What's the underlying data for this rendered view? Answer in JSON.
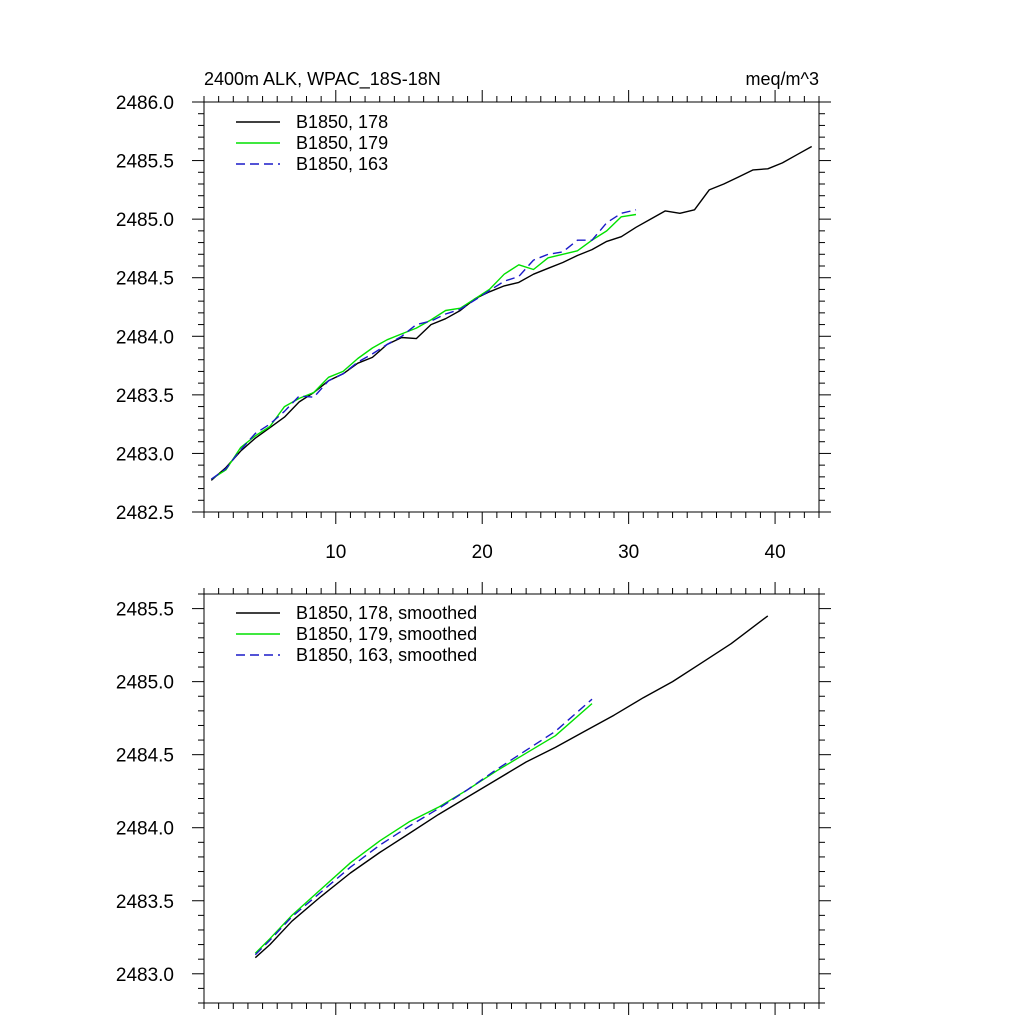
{
  "chart_data": [
    {
      "type": "line",
      "title_left": "2400m ALK, WPAC_18S-18N",
      "title_right": "meq/m^3",
      "xlim": [
        1,
        43
      ],
      "ylim": [
        2482.5,
        2486.0
      ],
      "xticks": [
        10,
        20,
        30,
        40
      ],
      "yticks": [
        2482.5,
        2483.0,
        2483.5,
        2484.0,
        2484.5,
        2485.0,
        2485.5,
        2486.0
      ],
      "ytick_labels": [
        "2482.5",
        "2483.0",
        "2483.5",
        "2484.0",
        "2484.5",
        "2485.0",
        "2485.5",
        "2486.0"
      ],
      "show_x_labels": true,
      "legend_position": "top-left",
      "series": [
        {
          "name": "B1850, 178",
          "color": "#000000",
          "dash": "solid",
          "x": [
            1.5,
            2.5,
            3.5,
            4.5,
            5.5,
            6.5,
            7.5,
            8.5,
            9.5,
            10.5,
            11.5,
            12.5,
            13.5,
            14.5,
            15.5,
            16.5,
            17.5,
            18.5,
            19.5,
            20.5,
            21.5,
            22.5,
            23.5,
            24.5,
            25.5,
            26.5,
            27.5,
            28.5,
            29.5,
            30.5,
            31.5,
            32.5,
            33.5,
            34.5,
            35.5,
            36.5,
            37.5,
            38.5,
            39.5,
            40.5,
            41.5,
            42.5
          ],
          "y": [
            2482.77,
            2482.88,
            2483.02,
            2483.13,
            2483.22,
            2483.31,
            2483.44,
            2483.52,
            2483.62,
            2483.68,
            2483.77,
            2483.82,
            2483.93,
            2483.99,
            2483.98,
            2484.1,
            2484.15,
            2484.22,
            2484.32,
            2484.38,
            2484.43,
            2484.46,
            2484.53,
            2484.58,
            2484.63,
            2484.69,
            2484.74,
            2484.81,
            2484.85,
            2484.93,
            2485.0,
            2485.07,
            2485.05,
            2485.08,
            2485.25,
            2485.3,
            2485.36,
            2485.42,
            2485.43,
            2485.48,
            2485.55,
            2485.62
          ]
        },
        {
          "name": "B1850, 179",
          "color": "#00e000",
          "dash": "solid",
          "x": [
            1.5,
            2.5,
            3.5,
            4.5,
            5.5,
            6.5,
            7.5,
            8.5,
            9.5,
            10.5,
            11.5,
            12.5,
            13.5,
            14.5,
            15.5,
            16.5,
            17.5,
            18.5,
            19.5,
            20.5,
            21.5,
            22.5,
            23.5,
            24.5,
            25.5,
            26.5,
            27.5,
            28.5,
            29.5,
            30.5
          ],
          "y": [
            2482.78,
            2482.86,
            2483.05,
            2483.15,
            2483.23,
            2483.4,
            2483.47,
            2483.52,
            2483.65,
            2483.7,
            2483.81,
            2483.9,
            2483.97,
            2484.02,
            2484.07,
            2484.14,
            2484.22,
            2484.24,
            2484.32,
            2484.4,
            2484.53,
            2484.61,
            2484.57,
            2484.67,
            2484.7,
            2484.73,
            2484.82,
            2484.9,
            2485.02,
            2485.04
          ]
        },
        {
          "name": "B1850, 163",
          "color": "#1a1ac8",
          "dash": "dashed",
          "x": [
            1.5,
            2.5,
            3.5,
            4.5,
            5.5,
            6.5,
            7.5,
            8.5,
            9.5,
            10.5,
            11.5,
            12.5,
            13.5,
            14.5,
            15.5,
            16.5,
            17.5,
            18.5,
            19.5,
            20.5,
            21.5,
            22.5,
            23.5,
            24.5,
            25.5,
            26.5,
            27.5,
            28.5,
            29.5,
            30.5
          ],
          "y": [
            2482.78,
            2482.87,
            2483.03,
            2483.17,
            2483.25,
            2483.36,
            2483.49,
            2483.48,
            2483.62,
            2483.68,
            2483.78,
            2483.85,
            2483.93,
            2484.0,
            2484.1,
            2484.13,
            2484.19,
            2484.23,
            2484.31,
            2484.39,
            2484.47,
            2484.51,
            2484.65,
            2484.7,
            2484.72,
            2484.82,
            2484.82,
            2484.97,
            2485.05,
            2485.08
          ]
        }
      ]
    },
    {
      "type": "line",
      "xlim": [
        1,
        43
      ],
      "ylim": [
        2482.8,
        2485.6
      ],
      "xticks": [
        10,
        20,
        30,
        40
      ],
      "yticks": [
        2483.0,
        2483.5,
        2484.0,
        2484.5,
        2485.0,
        2485.5
      ],
      "ytick_labels": [
        "2483.0",
        "2483.5",
        "2484.0",
        "2484.5",
        "2485.0",
        "2485.5"
      ],
      "show_x_labels": false,
      "legend_position": "top-left",
      "series": [
        {
          "name": "B1850, 178, smoothed",
          "color": "#000000",
          "dash": "solid",
          "x": [
            4.5,
            5.5,
            7,
            9,
            11,
            13,
            15,
            17,
            19,
            21,
            23,
            25,
            27,
            29,
            31,
            33,
            35,
            37,
            39.5
          ],
          "y": [
            2483.11,
            2483.2,
            2483.36,
            2483.53,
            2483.69,
            2483.83,
            2483.96,
            2484.09,
            2484.21,
            2484.33,
            2484.45,
            2484.55,
            2484.66,
            2484.77,
            2484.89,
            2485.0,
            2485.13,
            2485.26,
            2485.45
          ]
        },
        {
          "name": "B1850, 179, smoothed",
          "color": "#00e000",
          "dash": "solid",
          "x": [
            4.5,
            5.5,
            7,
            9,
            11,
            13,
            15,
            17,
            19,
            21,
            23,
            25,
            27.5
          ],
          "y": [
            2483.14,
            2483.24,
            2483.4,
            2483.58,
            2483.76,
            2483.91,
            2484.04,
            2484.14,
            2484.26,
            2484.39,
            2484.51,
            2484.63,
            2484.85
          ]
        },
        {
          "name": "B1850, 163, smoothed",
          "color": "#1a1ac8",
          "dash": "dashed",
          "x": [
            4.5,
            5.5,
            7,
            9,
            11,
            13,
            15,
            17,
            19,
            21,
            23,
            25,
            27.5
          ],
          "y": [
            2483.13,
            2483.23,
            2483.39,
            2483.56,
            2483.73,
            2483.88,
            2484.01,
            2484.13,
            2484.26,
            2484.4,
            2484.53,
            2484.66,
            2484.88
          ]
        }
      ]
    }
  ]
}
